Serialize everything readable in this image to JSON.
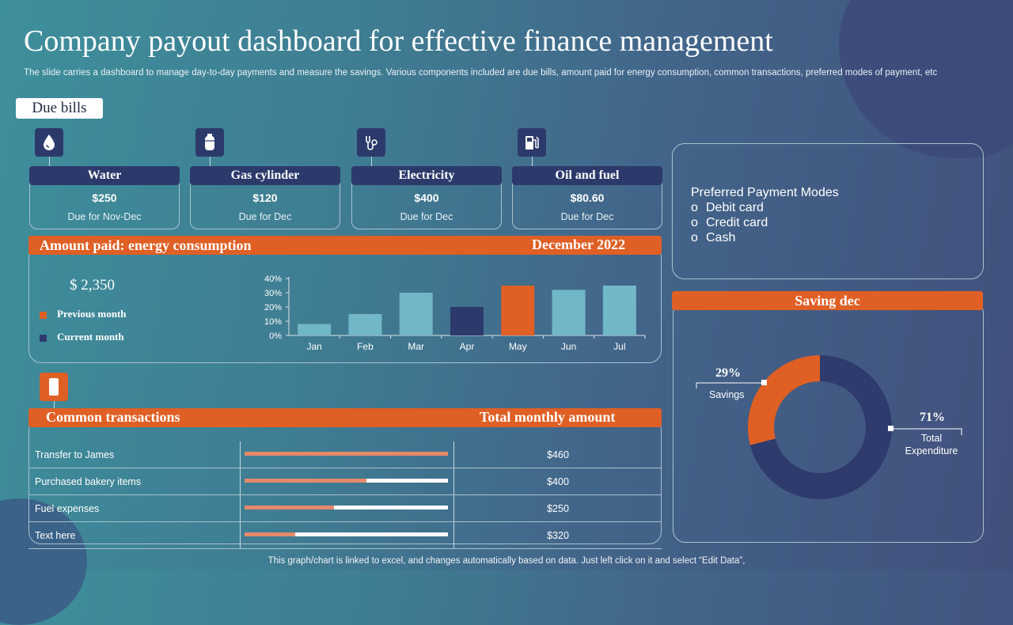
{
  "title": "Company payout dashboard for effective finance management",
  "subtitle": "The slide carries a dashboard to manage day-to-day payments and measure the savings. Various components included are due bills, amount paid for energy consumption, common transactions, preferred modes of payment, etc",
  "due_bills": {
    "tag": "Due bills",
    "items": [
      {
        "name": "Water",
        "amount": "$250",
        "due": "Due for Nov-Dec",
        "icon": "water-drop-icon"
      },
      {
        "name": "Gas cylinder",
        "amount": "$120",
        "due": "Due for Dec",
        "icon": "gas-cylinder-icon"
      },
      {
        "name": "Electricity",
        "amount": "$400",
        "due": "Due for Dec",
        "icon": "plug-icon"
      },
      {
        "name": "Oil and fuel",
        "amount": "$80.60",
        "due": "Due for Dec",
        "icon": "fuel-pump-icon"
      }
    ]
  },
  "energy": {
    "header": "Amount paid: energy consumption",
    "period": "December 2022",
    "amount": "$ 2,350",
    "legend": [
      {
        "label": "Previous month",
        "color": "#df5f24"
      },
      {
        "label": "Current month",
        "color": "#2c3a6b"
      }
    ]
  },
  "chart_data": {
    "type": "bar",
    "title": "",
    "xlabel": "",
    "ylabel": "",
    "categories": [
      "Jan",
      "Feb",
      "Mar",
      "Apr",
      "May",
      "Jun",
      "Jul"
    ],
    "values": [
      8,
      15,
      30,
      20,
      35,
      32,
      35
    ],
    "bar_colors": [
      "#72b7c7",
      "#72b7c7",
      "#72b7c7",
      "#2c3a6b",
      "#df5f24",
      "#72b7c7",
      "#72b7c7"
    ],
    "y_ticks": [
      "0%",
      "10%",
      "20%",
      "30%",
      "40%"
    ],
    "ylim": [
      0,
      40
    ]
  },
  "transactions": {
    "header": "Common transactions",
    "header_right": "Total monthly amount",
    "icon": "mobile-phone-icon",
    "rows": [
      {
        "label": "Transfer  to James",
        "progress": 1.0,
        "amount": "$460"
      },
      {
        "label": "Purchased bakery items",
        "progress": 0.6,
        "amount": "$400"
      },
      {
        "label": "Fuel expenses",
        "progress": 0.44,
        "amount": "$250"
      },
      {
        "label": "Text here",
        "progress": 0.25,
        "amount": "$320"
      }
    ]
  },
  "payment_modes": {
    "title": "Preferred Payment Modes",
    "items": [
      "Debit card",
      "Credit card",
      "Cash"
    ]
  },
  "saving": {
    "header": "Saving dec",
    "savings_pct": "29%",
    "savings_label": "Savings",
    "expenditure_pct": "71%",
    "expenditure_label_1": "Total",
    "expenditure_label_2": "Expenditure",
    "savings_value": 29,
    "expenditure_value": 71,
    "savings_color": "#df5f24",
    "expenditure_color": "#2e3b6c"
  },
  "footer": "This graph/chart is linked to excel,  and changes automatically based on data. Just left click on it and select “Edit Data”,"
}
